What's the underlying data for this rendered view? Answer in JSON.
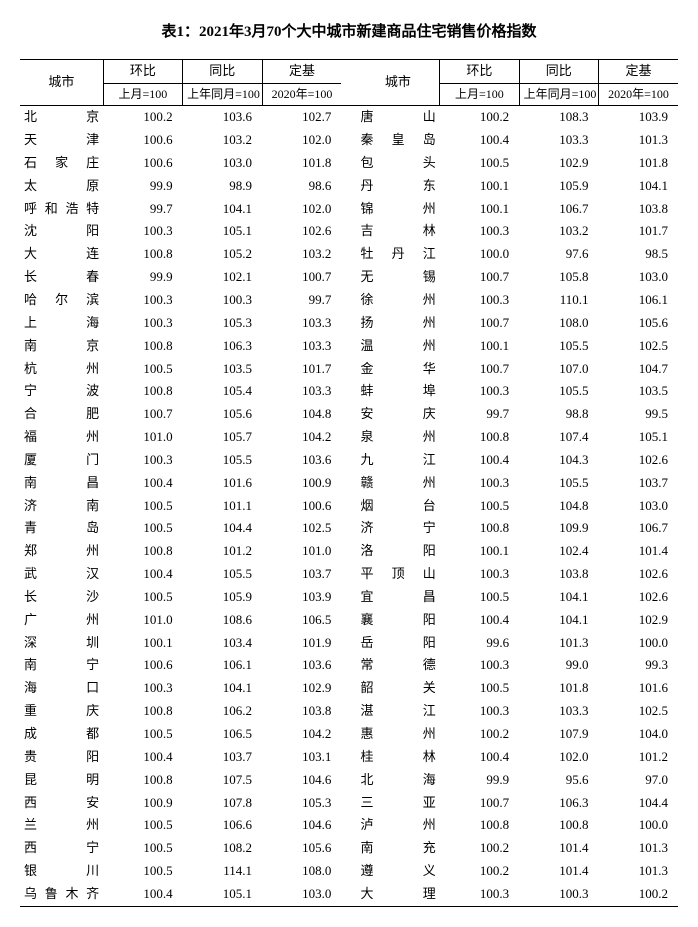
{
  "title": "表1：2021年3月70个大中城市新建商品住宅销售价格指数",
  "headers": {
    "city": "城市",
    "mom": "环比",
    "yoy": "同比",
    "base": "定基",
    "mom_sub": "上月=100",
    "yoy_sub": "上年同月=100",
    "base_sub": "2020年=100"
  },
  "left": [
    {
      "c": "北　　京",
      "m": "100.2",
      "y": "103.6",
      "b": "102.7"
    },
    {
      "c": "天　　津",
      "m": "100.6",
      "y": "103.2",
      "b": "102.0"
    },
    {
      "c": "石 家 庄",
      "m": "100.6",
      "y": "103.0",
      "b": "101.8"
    },
    {
      "c": "太　　原",
      "m": "99.9",
      "y": "98.9",
      "b": "98.6"
    },
    {
      "c": "呼和浩特",
      "m": "99.7",
      "y": "104.1",
      "b": "102.0"
    },
    {
      "c": "沈　　阳",
      "m": "100.3",
      "y": "105.1",
      "b": "102.6"
    },
    {
      "c": "大　　连",
      "m": "100.8",
      "y": "105.2",
      "b": "103.2"
    },
    {
      "c": "长　　春",
      "m": "99.9",
      "y": "102.1",
      "b": "100.7"
    },
    {
      "c": "哈 尔 滨",
      "m": "100.3",
      "y": "100.3",
      "b": "99.7"
    },
    {
      "c": "上　　海",
      "m": "100.3",
      "y": "105.3",
      "b": "103.3"
    },
    {
      "c": "南　　京",
      "m": "100.8",
      "y": "106.3",
      "b": "103.3"
    },
    {
      "c": "杭　　州",
      "m": "100.5",
      "y": "103.5",
      "b": "101.7"
    },
    {
      "c": "宁　　波",
      "m": "100.8",
      "y": "105.4",
      "b": "103.3"
    },
    {
      "c": "合　　肥",
      "m": "100.7",
      "y": "105.6",
      "b": "104.8"
    },
    {
      "c": "福　　州",
      "m": "101.0",
      "y": "105.7",
      "b": "104.2"
    },
    {
      "c": "厦　　门",
      "m": "100.3",
      "y": "105.5",
      "b": "103.6"
    },
    {
      "c": "南　　昌",
      "m": "100.4",
      "y": "101.6",
      "b": "100.9"
    },
    {
      "c": "济　　南",
      "m": "100.5",
      "y": "101.1",
      "b": "100.6"
    },
    {
      "c": "青　　岛",
      "m": "100.5",
      "y": "104.4",
      "b": "102.5"
    },
    {
      "c": "郑　　州",
      "m": "100.8",
      "y": "101.2",
      "b": "101.0"
    },
    {
      "c": "武　　汉",
      "m": "100.4",
      "y": "105.5",
      "b": "103.7"
    },
    {
      "c": "长　　沙",
      "m": "100.5",
      "y": "105.9",
      "b": "103.9"
    },
    {
      "c": "广　　州",
      "m": "101.0",
      "y": "108.6",
      "b": "106.5"
    },
    {
      "c": "深　　圳",
      "m": "100.1",
      "y": "103.4",
      "b": "101.9"
    },
    {
      "c": "南　　宁",
      "m": "100.6",
      "y": "106.1",
      "b": "103.6"
    },
    {
      "c": "海　　口",
      "m": "100.3",
      "y": "104.1",
      "b": "102.9"
    },
    {
      "c": "重　　庆",
      "m": "100.8",
      "y": "106.2",
      "b": "103.8"
    },
    {
      "c": "成　　都",
      "m": "100.5",
      "y": "106.5",
      "b": "104.2"
    },
    {
      "c": "贵　　阳",
      "m": "100.4",
      "y": "103.7",
      "b": "103.1"
    },
    {
      "c": "昆　　明",
      "m": "100.8",
      "y": "107.5",
      "b": "104.6"
    },
    {
      "c": "西　　安",
      "m": "100.9",
      "y": "107.8",
      "b": "105.3"
    },
    {
      "c": "兰　　州",
      "m": "100.5",
      "y": "106.6",
      "b": "104.6"
    },
    {
      "c": "西　　宁",
      "m": "100.5",
      "y": "108.2",
      "b": "105.6"
    },
    {
      "c": "银　　川",
      "m": "100.5",
      "y": "114.1",
      "b": "108.0"
    },
    {
      "c": "乌鲁木齐",
      "m": "100.4",
      "y": "105.1",
      "b": "103.0"
    }
  ],
  "right": [
    {
      "c": "唐　　山",
      "m": "100.2",
      "y": "108.3",
      "b": "103.9"
    },
    {
      "c": "秦 皇 岛",
      "m": "100.4",
      "y": "103.3",
      "b": "101.3"
    },
    {
      "c": "包　　头",
      "m": "100.5",
      "y": "102.9",
      "b": "101.8"
    },
    {
      "c": "丹　　东",
      "m": "100.1",
      "y": "105.9",
      "b": "104.1"
    },
    {
      "c": "锦　　州",
      "m": "100.1",
      "y": "106.7",
      "b": "103.8"
    },
    {
      "c": "吉　　林",
      "m": "100.3",
      "y": "103.2",
      "b": "101.7"
    },
    {
      "c": "牡 丹 江",
      "m": "100.0",
      "y": "97.6",
      "b": "98.5"
    },
    {
      "c": "无　　锡",
      "m": "100.7",
      "y": "105.8",
      "b": "103.0"
    },
    {
      "c": "徐　　州",
      "m": "100.3",
      "y": "110.1",
      "b": "106.1"
    },
    {
      "c": "扬　　州",
      "m": "100.7",
      "y": "108.0",
      "b": "105.6"
    },
    {
      "c": "温　　州",
      "m": "100.1",
      "y": "105.5",
      "b": "102.5"
    },
    {
      "c": "金　　华",
      "m": "100.7",
      "y": "107.0",
      "b": "104.7"
    },
    {
      "c": "蚌　　埠",
      "m": "100.3",
      "y": "105.5",
      "b": "103.5"
    },
    {
      "c": "安　　庆",
      "m": "99.7",
      "y": "98.8",
      "b": "99.5"
    },
    {
      "c": "泉　　州",
      "m": "100.8",
      "y": "107.4",
      "b": "105.1"
    },
    {
      "c": "九　　江",
      "m": "100.4",
      "y": "104.3",
      "b": "102.6"
    },
    {
      "c": "赣　　州",
      "m": "100.3",
      "y": "105.5",
      "b": "103.7"
    },
    {
      "c": "烟　　台",
      "m": "100.5",
      "y": "104.8",
      "b": "103.0"
    },
    {
      "c": "济　　宁",
      "m": "100.8",
      "y": "109.9",
      "b": "106.7"
    },
    {
      "c": "洛　　阳",
      "m": "100.1",
      "y": "102.4",
      "b": "101.4"
    },
    {
      "c": "平 顶 山",
      "m": "100.3",
      "y": "103.8",
      "b": "102.6"
    },
    {
      "c": "宜　　昌",
      "m": "100.5",
      "y": "104.1",
      "b": "102.6"
    },
    {
      "c": "襄　　阳",
      "m": "100.4",
      "y": "104.1",
      "b": "102.9"
    },
    {
      "c": "岳　　阳",
      "m": "99.6",
      "y": "101.3",
      "b": "100.0"
    },
    {
      "c": "常　　德",
      "m": "100.3",
      "y": "99.0",
      "b": "99.3"
    },
    {
      "c": "韶　　关",
      "m": "100.5",
      "y": "101.8",
      "b": "101.6"
    },
    {
      "c": "湛　　江",
      "m": "100.3",
      "y": "103.3",
      "b": "102.5"
    },
    {
      "c": "惠　　州",
      "m": "100.2",
      "y": "107.9",
      "b": "104.0"
    },
    {
      "c": "桂　　林",
      "m": "100.4",
      "y": "102.0",
      "b": "101.2"
    },
    {
      "c": "北　　海",
      "m": "99.9",
      "y": "95.6",
      "b": "97.0"
    },
    {
      "c": "三　　亚",
      "m": "100.7",
      "y": "106.3",
      "b": "104.4"
    },
    {
      "c": "泸　　州",
      "m": "100.8",
      "y": "100.8",
      "b": "100.0"
    },
    {
      "c": "南　　充",
      "m": "100.2",
      "y": "101.4",
      "b": "101.3"
    },
    {
      "c": "遵　　义",
      "m": "100.2",
      "y": "101.4",
      "b": "101.3"
    },
    {
      "c": "大　　理",
      "m": "100.3",
      "y": "100.3",
      "b": "100.2"
    }
  ]
}
